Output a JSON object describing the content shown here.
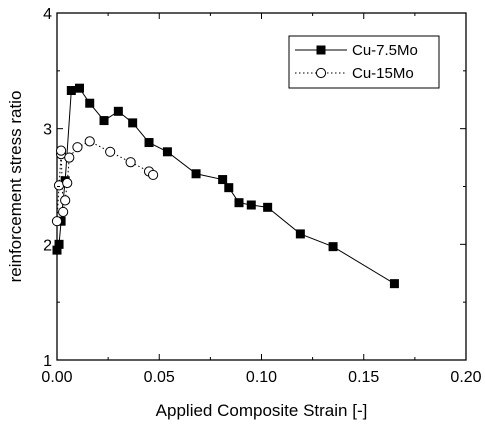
{
  "chart_data": {
    "type": "scatter",
    "xlabel": "Applied Composite Strain [-]",
    "ylabel": "reinforcement stress ratio",
    "xlim": [
      0.0,
      0.2
    ],
    "ylim": [
      1,
      4
    ],
    "x_ticks": [
      "0.00",
      "0.05",
      "0.10",
      "0.15",
      "0.20"
    ],
    "y_ticks": [
      "1",
      "2",
      "3",
      "4"
    ],
    "grid": false,
    "legend_position": "top-right",
    "series": [
      {
        "name": "Cu-7.5Mo",
        "marker": "filled-square",
        "line": "solid",
        "color": "#000000",
        "points": [
          [
            0.0,
            1.95
          ],
          [
            0.001,
            2.0
          ],
          [
            0.002,
            2.2
          ],
          [
            0.004,
            2.55
          ],
          [
            0.007,
            3.33
          ],
          [
            0.011,
            3.35
          ],
          [
            0.016,
            3.22
          ],
          [
            0.023,
            3.07
          ],
          [
            0.03,
            3.15
          ],
          [
            0.037,
            3.05
          ],
          [
            0.045,
            2.88
          ],
          [
            0.054,
            2.8
          ],
          [
            0.068,
            2.61
          ],
          [
            0.081,
            2.56
          ],
          [
            0.084,
            2.49
          ],
          [
            0.089,
            2.36
          ],
          [
            0.095,
            2.34
          ],
          [
            0.103,
            2.32
          ],
          [
            0.119,
            2.09
          ],
          [
            0.135,
            1.98
          ],
          [
            0.165,
            1.66
          ]
        ]
      },
      {
        "name": "Cu-15Mo",
        "marker": "open-circle",
        "line": "dotted",
        "color": "#000000",
        "points": [
          [
            0.0,
            2.2
          ],
          [
            0.001,
            2.51
          ],
          [
            0.002,
            2.78
          ],
          [
            0.002,
            2.81
          ],
          [
            0.003,
            2.28
          ],
          [
            0.004,
            2.38
          ],
          [
            0.005,
            2.53
          ],
          [
            0.006,
            2.75
          ],
          [
            0.01,
            2.84
          ],
          [
            0.016,
            2.89
          ],
          [
            0.026,
            2.8
          ],
          [
            0.036,
            2.71
          ],
          [
            0.045,
            2.63
          ],
          [
            0.047,
            2.6
          ]
        ]
      }
    ]
  }
}
